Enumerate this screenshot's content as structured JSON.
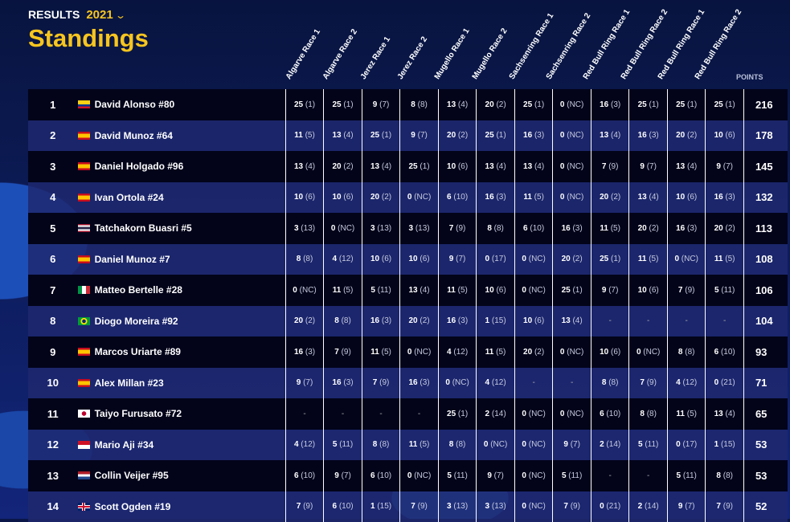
{
  "header": {
    "section": "RESULTS",
    "year": "2021",
    "title": "Standings"
  },
  "columns": {
    "races": [
      "Algarve Race 1",
      "Algarve Race 2",
      "Jerez Race 1",
      "Jerez Race 2",
      "Mugello Race 1",
      "Mugello Race 2",
      "Sachsenring Race 1",
      "Sachsenring Race 2",
      "Red Bull Ring Race 1",
      "Red Bull Ring Race 2",
      "Red Bull Ring Race 1",
      "Red Bull Ring Race 2"
    ],
    "points": "POINTS"
  },
  "flags": {
    "co": "linear-gradient(#fcd116 50%,#003893 50% 75%,#ce1126 75%)",
    "es": "linear-gradient(#c60b1e 25%,#ffc400 25% 75%,#c60b1e 75%)",
    "th": "linear-gradient(#a51931 16%,#fff 16% 33%,#2d2a4a 33% 67%,#fff 67% 84%,#a51931 84%)",
    "it": "linear-gradient(90deg,#009246 33%,#fff 33% 67%,#ce2b37 67%)",
    "br": "radial-gradient(circle at 50% 50%,#002776 25%,#fedf00 26% 45%,#009c3b 46%)",
    "jp": "radial-gradient(circle,#bc002d 30%,#fff 32%)",
    "id": "linear-gradient(#ce1126 50%,#fff 50%)",
    "nl": "linear-gradient(#ae1c28 33%,#fff 33% 67%,#21468b 67%)",
    "gb": "linear-gradient(#c8102e,#c8102e) center/100% 2px no-repeat,linear-gradient(#c8102e,#c8102e) center/2px 100% no-repeat,linear-gradient(#fff,#fff) center/100% 4px no-repeat,linear-gradient(#fff,#fff) center/4px 100% no-repeat,#012169"
  },
  "rows": [
    {
      "pos": "1",
      "flag": "co",
      "name": "David Alonso #80",
      "results": [
        "25|1",
        "25|1",
        "9|7",
        "8|8",
        "13|4",
        "20|2",
        "25|1",
        "0|NC",
        "16|3",
        "25|1",
        "25|1",
        "25|1"
      ],
      "points": "216"
    },
    {
      "pos": "2",
      "flag": "es",
      "name": "David Munoz #64",
      "results": [
        "11|5",
        "13|4",
        "25|1",
        "9|7",
        "20|2",
        "25|1",
        "16|3",
        "0|NC",
        "13|4",
        "16|3",
        "20|2",
        "10|6"
      ],
      "points": "178"
    },
    {
      "pos": "3",
      "flag": "es",
      "name": "Daniel Holgado #96",
      "results": [
        "13|4",
        "20|2",
        "13|4",
        "25|1",
        "10|6",
        "13|4",
        "13|4",
        "0|NC",
        "7|9",
        "9|7",
        "13|4",
        "9|7"
      ],
      "points": "145"
    },
    {
      "pos": "4",
      "flag": "es",
      "name": "Ivan Ortola #24",
      "results": [
        "10|6",
        "10|6",
        "20|2",
        "0|NC",
        "6|10",
        "16|3",
        "11|5",
        "0|NC",
        "20|2",
        "13|4",
        "10|6",
        "16|3"
      ],
      "points": "132"
    },
    {
      "pos": "5",
      "flag": "th",
      "name": "Tatchakorn Buasri #5",
      "results": [
        "3|13",
        "0|NC",
        "3|13",
        "3|13",
        "7|9",
        "8|8",
        "6|10",
        "16|3",
        "11|5",
        "20|2",
        "16|3",
        "20|2"
      ],
      "points": "113"
    },
    {
      "pos": "6",
      "flag": "es",
      "name": "Daniel Munoz #7",
      "results": [
        "8|8",
        "4|12",
        "10|6",
        "10|6",
        "9|7",
        "0|17",
        "0|NC",
        "20|2",
        "25|1",
        "11|5",
        "0|NC",
        "11|5"
      ],
      "points": "108"
    },
    {
      "pos": "7",
      "flag": "it",
      "name": "Matteo Bertelle #28",
      "results": [
        "0|NC",
        "11|5",
        "5|11",
        "13|4",
        "11|5",
        "10|6",
        "0|NC",
        "25|1",
        "9|7",
        "10|6",
        "7|9",
        "5|11"
      ],
      "points": "106"
    },
    {
      "pos": "8",
      "flag": "br",
      "name": "Diogo Moreira #92",
      "results": [
        "20|2",
        "8|8",
        "16|3",
        "20|2",
        "16|3",
        "1|15",
        "10|6",
        "13|4",
        "-",
        "-",
        "-",
        "-"
      ],
      "points": "104"
    },
    {
      "pos": "9",
      "flag": "es",
      "name": "Marcos Uriarte #89",
      "results": [
        "16|3",
        "7|9",
        "11|5",
        "0|NC",
        "4|12",
        "11|5",
        "20|2",
        "0|NC",
        "10|6",
        "0|NC",
        "8|8",
        "6|10"
      ],
      "points": "93"
    },
    {
      "pos": "10",
      "flag": "es",
      "name": "Alex Millan #23",
      "results": [
        "9|7",
        "16|3",
        "7|9",
        "16|3",
        "0|NC",
        "4|12",
        "-",
        "-",
        "8|8",
        "7|9",
        "4|12",
        "0|21"
      ],
      "points": "71"
    },
    {
      "pos": "11",
      "flag": "jp",
      "name": "Taiyo Furusato #72",
      "results": [
        "-",
        "-",
        "-",
        "-",
        "25|1",
        "2|14",
        "0|NC",
        "0|NC",
        "6|10",
        "8|8",
        "11|5",
        "13|4"
      ],
      "points": "65"
    },
    {
      "pos": "12",
      "flag": "id",
      "name": "Mario Aji #34",
      "results": [
        "4|12",
        "5|11",
        "8|8",
        "11|5",
        "8|8",
        "0|NC",
        "0|NC",
        "9|7",
        "2|14",
        "5|11",
        "0|17",
        "1|15"
      ],
      "points": "53"
    },
    {
      "pos": "13",
      "flag": "nl",
      "name": "Collin Veijer #95",
      "results": [
        "6|10",
        "9|7",
        "6|10",
        "0|NC",
        "5|11",
        "9|7",
        "0|NC",
        "5|11",
        "-",
        "-",
        "5|11",
        "8|8"
      ],
      "points": "53"
    },
    {
      "pos": "14",
      "flag": "gb",
      "name": "Scott Ogden #19",
      "results": [
        "7|9",
        "6|10",
        "1|15",
        "7|9",
        "3|13",
        "3|13",
        "0|NC",
        "7|9",
        "0|21",
        "2|14",
        "9|7",
        "7|9"
      ],
      "points": "52"
    }
  ]
}
